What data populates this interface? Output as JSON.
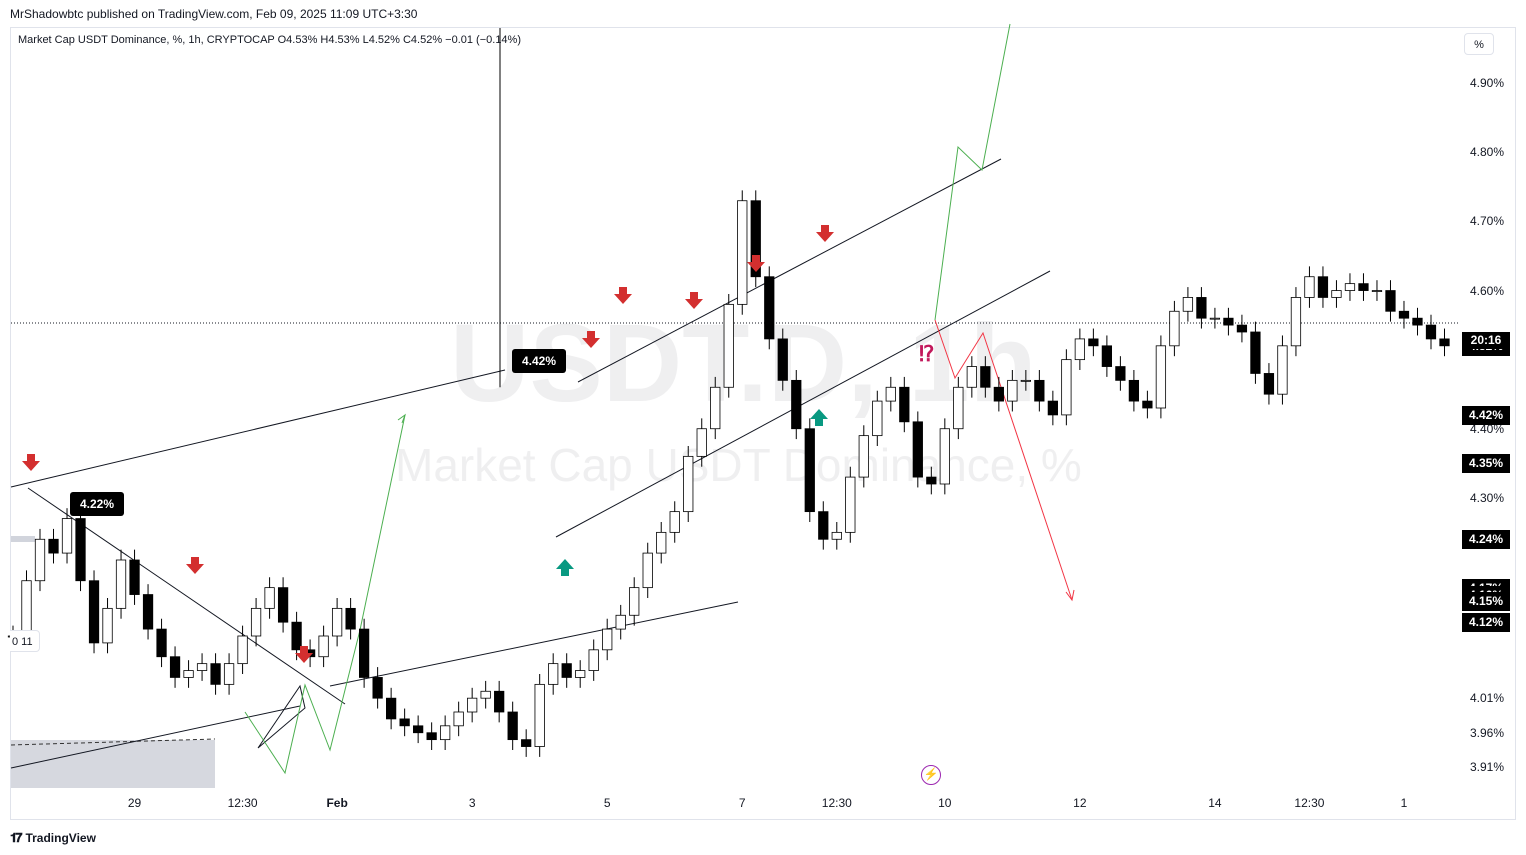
{
  "header": {
    "published_by": "MrShadowbtc published on TradingView.com, Feb 09, 2025 11:09 UTC+3:30"
  },
  "legend": {
    "text": "Market Cap USDT Dominance, %, 1h, CRYPTOCAP  O4.53%  H4.53%  L4.52%  C4.52%  −0.01 (−0.14%)"
  },
  "scale": {
    "unit_button": "%"
  },
  "watermark": {
    "symbol": "USDT.D, 1h",
    "name": "Market Cap USDT Dominance, %"
  },
  "callouts": [
    {
      "id": "callout-422",
      "text": "4.22%"
    },
    {
      "id": "callout-442",
      "text": "4.42%"
    }
  ],
  "edge_badge": "0 11",
  "footer": {
    "brand": "TradingView"
  },
  "colors": {
    "candle": "#000000",
    "sell_arrow": "#d32f2f",
    "buy_arrow": "#089981",
    "bull_path": "#4caf50",
    "bear_path": "#f23645",
    "warning": "#c2185b"
  },
  "chart_data": {
    "type": "line",
    "title": "Market Cap USDT Dominance, %, 1h, CRYPTOCAP",
    "ohlc_last": {
      "open": 4.53,
      "high": 4.53,
      "low": 4.52,
      "close": 4.52,
      "change": -0.01,
      "change_pct": -0.14
    },
    "y_ticks": [
      "4.90%",
      "4.80%",
      "4.70%",
      "4.60%",
      "4.40%",
      "4.30%",
      "4.01%",
      "3.96%",
      "3.91%"
    ],
    "y_tick_values": [
      4.9,
      4.8,
      4.7,
      4.6,
      4.4,
      4.3,
      4.01,
      3.96,
      3.91
    ],
    "price_labels": [
      "4.52%",
      "4.42%",
      "4.35%",
      "4.24%",
      "4.17%",
      "4.16%",
      "4.15%",
      "4.12%",
      "4.12%"
    ],
    "price_label_values": [
      4.52,
      4.42,
      4.35,
      4.24,
      4.17,
      4.16,
      4.15,
      4.12,
      4.12
    ],
    "countdown": "20:16",
    "x_ticks": [
      {
        "label": "29",
        "bold": false
      },
      {
        "label": "12:30",
        "bold": false
      },
      {
        "label": "Feb",
        "bold": true
      },
      {
        "label": "3",
        "bold": false
      },
      {
        "label": "5",
        "bold": false
      },
      {
        "label": "7",
        "bold": false
      },
      {
        "label": "12:30",
        "bold": false
      },
      {
        "label": "10",
        "bold": false
      },
      {
        "label": "12",
        "bold": false
      },
      {
        "label": "14",
        "bold": false
      },
      {
        "label": "12:30",
        "bold": false
      },
      {
        "label": "1",
        "bold": false
      }
    ],
    "x_tick_index": [
      9,
      17,
      24,
      34,
      44,
      54,
      61,
      69,
      79,
      89,
      96,
      103
    ],
    "x_range_index": [
      0,
      107
    ],
    "ylim": [
      3.88,
      4.98
    ],
    "series": [
      {
        "values": [
          4.1,
          4.18,
          4.24,
          4.22,
          4.27,
          4.18,
          4.09,
          4.14,
          4.21,
          4.16,
          4.11,
          4.07,
          4.04,
          4.05,
          4.06,
          4.03,
          4.06,
          4.1,
          4.14,
          4.17,
          4.12,
          4.08,
          4.07,
          4.1,
          4.14,
          4.11,
          4.04,
          4.01,
          3.98,
          3.97,
          3.96,
          3.95,
          3.97,
          3.99,
          4.01,
          4.02,
          3.99,
          3.95,
          3.94,
          4.03,
          4.06,
          4.04,
          4.05,
          4.08,
          4.11,
          4.13,
          4.17,
          4.22,
          4.25,
          4.28,
          4.36,
          4.4,
          4.46,
          4.58,
          4.73,
          4.62,
          4.53,
          4.47,
          4.4,
          4.28,
          4.24,
          4.25,
          4.33,
          4.39,
          4.44,
          4.46,
          4.41,
          4.33,
          4.32,
          4.4,
          4.46,
          4.49,
          4.46,
          4.44,
          4.47,
          4.47,
          4.44,
          4.42,
          4.5,
          4.53,
          4.52,
          4.49,
          4.47,
          4.44,
          4.43,
          4.52,
          4.57,
          4.59,
          4.56,
          4.56,
          4.55,
          4.54,
          4.48,
          4.45,
          4.52,
          4.59,
          4.62,
          4.59,
          4.6,
          4.61,
          4.6,
          4.6,
          4.57,
          4.56,
          4.55,
          4.53,
          4.52
        ]
      }
    ],
    "sell_arrow_count": 9,
    "buy_arrow_count": 2,
    "grid": false,
    "legend_position": "top-left"
  }
}
